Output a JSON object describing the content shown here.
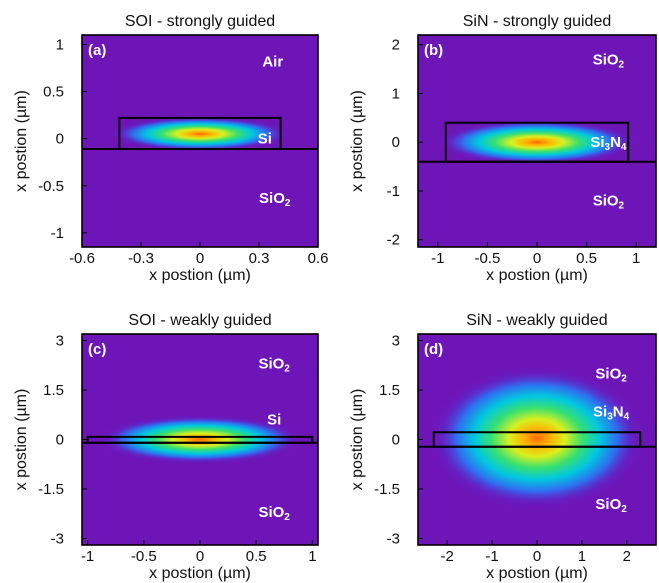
{
  "chart_data": [
    {
      "id": "a",
      "type": "heatmap",
      "title": "SOI - strongly guided",
      "panel_label": "(a)",
      "xlabel": "x postion (µm)",
      "ylabel": "x postion (µm)",
      "xlim": [
        -0.6,
        0.6
      ],
      "ylim": [
        -1.15,
        1.1
      ],
      "xticks": [
        -0.6,
        -0.3,
        0,
        0.3,
        0.6
      ],
      "xtick_labels": [
        "-0.6",
        "-0.3",
        "0",
        "0.3",
        "0.6"
      ],
      "yticks": [
        1,
        0.5,
        0,
        -0.5,
        -1
      ],
      "ytick_labels": [
        "1",
        "0.5",
        "0",
        "-0.5",
        "-1"
      ],
      "core": {
        "x0": -0.41,
        "x1": 0.41,
        "y0": -0.11,
        "y1": 0.22
      },
      "interface_y": -0.11,
      "mode": {
        "cx": 0.0,
        "cy": 0.05,
        "sx": 0.2,
        "sy": 0.08
      },
      "region_labels": [
        {
          "text": "Air",
          "x": 0.37,
          "y": 0.82
        },
        {
          "text": "Si",
          "x": 0.33,
          "y": 0.0
        },
        {
          "base": "SiO",
          "sub": "2",
          "x": 0.38,
          "y": -0.63
        }
      ]
    },
    {
      "id": "b",
      "type": "heatmap",
      "title": "SiN - strongly guided",
      "panel_label": "(b)",
      "xlabel": "x postion (µm)",
      "ylabel": "x postion (µm)",
      "xlim": [
        -1.2,
        1.2
      ],
      "ylim": [
        -2.15,
        2.2
      ],
      "xticks": [
        -1,
        -0.5,
        0,
        0.5,
        1
      ],
      "xtick_labels": [
        "-1",
        "-0.5",
        "0",
        "0.5",
        "1"
      ],
      "yticks": [
        2,
        1,
        0,
        -1,
        -2
      ],
      "ytick_labels": [
        "2",
        "1",
        "0",
        "-1",
        "-2"
      ],
      "core": {
        "x0": -0.92,
        "x1": 0.92,
        "y0": -0.4,
        "y1": 0.4
      },
      "interface_y": -0.4,
      "mode": {
        "cx": 0.0,
        "cy": 0.0,
        "sx": 0.44,
        "sy": 0.2
      },
      "region_labels": [
        {
          "base": "SiO",
          "sub": "2",
          "x": 0.72,
          "y": 1.7
        },
        {
          "base": "Si",
          "sub": "3",
          "tail": "N",
          "sub2": "4",
          "x": 0.72,
          "y": 0.0
        },
        {
          "base": "SiO",
          "sub": "2",
          "x": 0.72,
          "y": -1.2
        }
      ]
    },
    {
      "id": "c",
      "type": "heatmap",
      "title": "SOI - weakly guided",
      "panel_label": "(c)",
      "xlabel": "x postion (µm)",
      "ylabel": "x postion (µm)",
      "xlim": [
        -1.05,
        1.05
      ],
      "ylim": [
        -3.2,
        3.2
      ],
      "xticks": [
        -1,
        -0.5,
        0,
        0.5,
        1
      ],
      "xtick_labels": [
        "-1",
        "-0.5",
        "0",
        "0.5",
        "1"
      ],
      "yticks": [
        3,
        1.5,
        0,
        -1.5,
        -3
      ],
      "ytick_labels": [
        "3",
        "1.5",
        "0",
        "-1.5",
        "-3"
      ],
      "core": {
        "x0": -1.0,
        "x1": 1.0,
        "y0": -0.1,
        "y1": 0.08
      },
      "interface_y": -0.1,
      "mode": {
        "cx": 0.0,
        "cy": 0.0,
        "sx": 0.4,
        "sy": 0.32
      },
      "region_labels": [
        {
          "base": "SiO",
          "sub": "2",
          "x": 0.66,
          "y": 2.3
        },
        {
          "text": "Si",
          "x": 0.66,
          "y": 0.6
        },
        {
          "base": "SiO",
          "sub": "2",
          "x": 0.66,
          "y": -2.2
        }
      ]
    },
    {
      "id": "d",
      "type": "heatmap",
      "title": "SiN - weakly guided",
      "panel_label": "(d)",
      "xlabel": "x postion (µm)",
      "ylabel": "x postion (µm)",
      "xlim": [
        -2.65,
        2.65
      ],
      "ylim": [
        -3.2,
        3.2
      ],
      "xticks": [
        -2,
        -1,
        0,
        1,
        2
      ],
      "xtick_labels": [
        "-2",
        "-1",
        "0",
        "1",
        "2"
      ],
      "yticks": [
        3,
        1.5,
        0,
        -1.5,
        -3
      ],
      "ytick_labels": [
        "3",
        "1.5",
        "0",
        "-1.5",
        "-3"
      ],
      "core": {
        "x0": -2.3,
        "x1": 2.3,
        "y0": -0.22,
        "y1": 0.22
      },
      "interface_y": -0.22,
      "mode": {
        "cx": 0.0,
        "cy": 0.05,
        "sx": 1.05,
        "sy": 0.95
      },
      "region_labels": [
        {
          "base": "SiO",
          "sub": "2",
          "x": 1.65,
          "y": 2.0
        },
        {
          "base": "Si",
          "sub": "3",
          "tail": "N",
          "sub2": "4",
          "x": 1.65,
          "y": 0.85
        },
        {
          "base": "SiO",
          "sub": "2",
          "x": 1.65,
          "y": -1.95
        }
      ]
    }
  ]
}
